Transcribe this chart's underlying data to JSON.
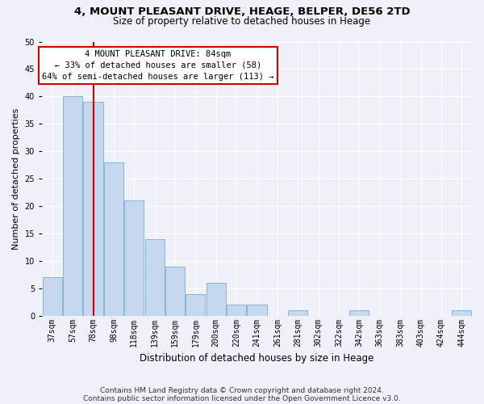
{
  "title1": "4, MOUNT PLEASANT DRIVE, HEAGE, BELPER, DE56 2TD",
  "title2": "Size of property relative to detached houses in Heage",
  "xlabel": "Distribution of detached houses by size in Heage",
  "ylabel": "Number of detached properties",
  "categories": [
    "37sqm",
    "57sqm",
    "78sqm",
    "98sqm",
    "118sqm",
    "139sqm",
    "159sqm",
    "179sqm",
    "200sqm",
    "220sqm",
    "241sqm",
    "261sqm",
    "281sqm",
    "302sqm",
    "322sqm",
    "342sqm",
    "363sqm",
    "383sqm",
    "403sqm",
    "424sqm",
    "444sqm"
  ],
  "values": [
    7,
    40,
    39,
    28,
    21,
    14,
    9,
    4,
    6,
    2,
    2,
    0,
    1,
    0,
    0,
    1,
    0,
    0,
    0,
    0,
    1
  ],
  "bar_color": "#c5d8ee",
  "bar_edge_color": "#7aadd4",
  "vline_x": 2.0,
  "vline_color": "#cc0000",
  "annotation_title": "4 MOUNT PLEASANT DRIVE: 84sqm",
  "annotation_line2": "← 33% of detached houses are smaller (58)",
  "annotation_line3": "64% of semi-detached houses are larger (113) →",
  "annotation_box_facecolor": "white",
  "annotation_box_edgecolor": "#cc0000",
  "ylim": [
    0,
    50
  ],
  "yticks": [
    0,
    5,
    10,
    15,
    20,
    25,
    30,
    35,
    40,
    45,
    50
  ],
  "footnote1": "Contains HM Land Registry data © Crown copyright and database right 2024.",
  "footnote2": "Contains public sector information licensed under the Open Government Licence v3.0.",
  "bg_color": "#eef2f8",
  "grid_color": "#ffffff",
  "title1_fontsize": 9.5,
  "title2_fontsize": 8.5,
  "ylabel_fontsize": 8,
  "xlabel_fontsize": 8.5,
  "tick_fontsize": 7,
  "annotation_fontsize": 7.5,
  "footnote_fontsize": 6.5
}
